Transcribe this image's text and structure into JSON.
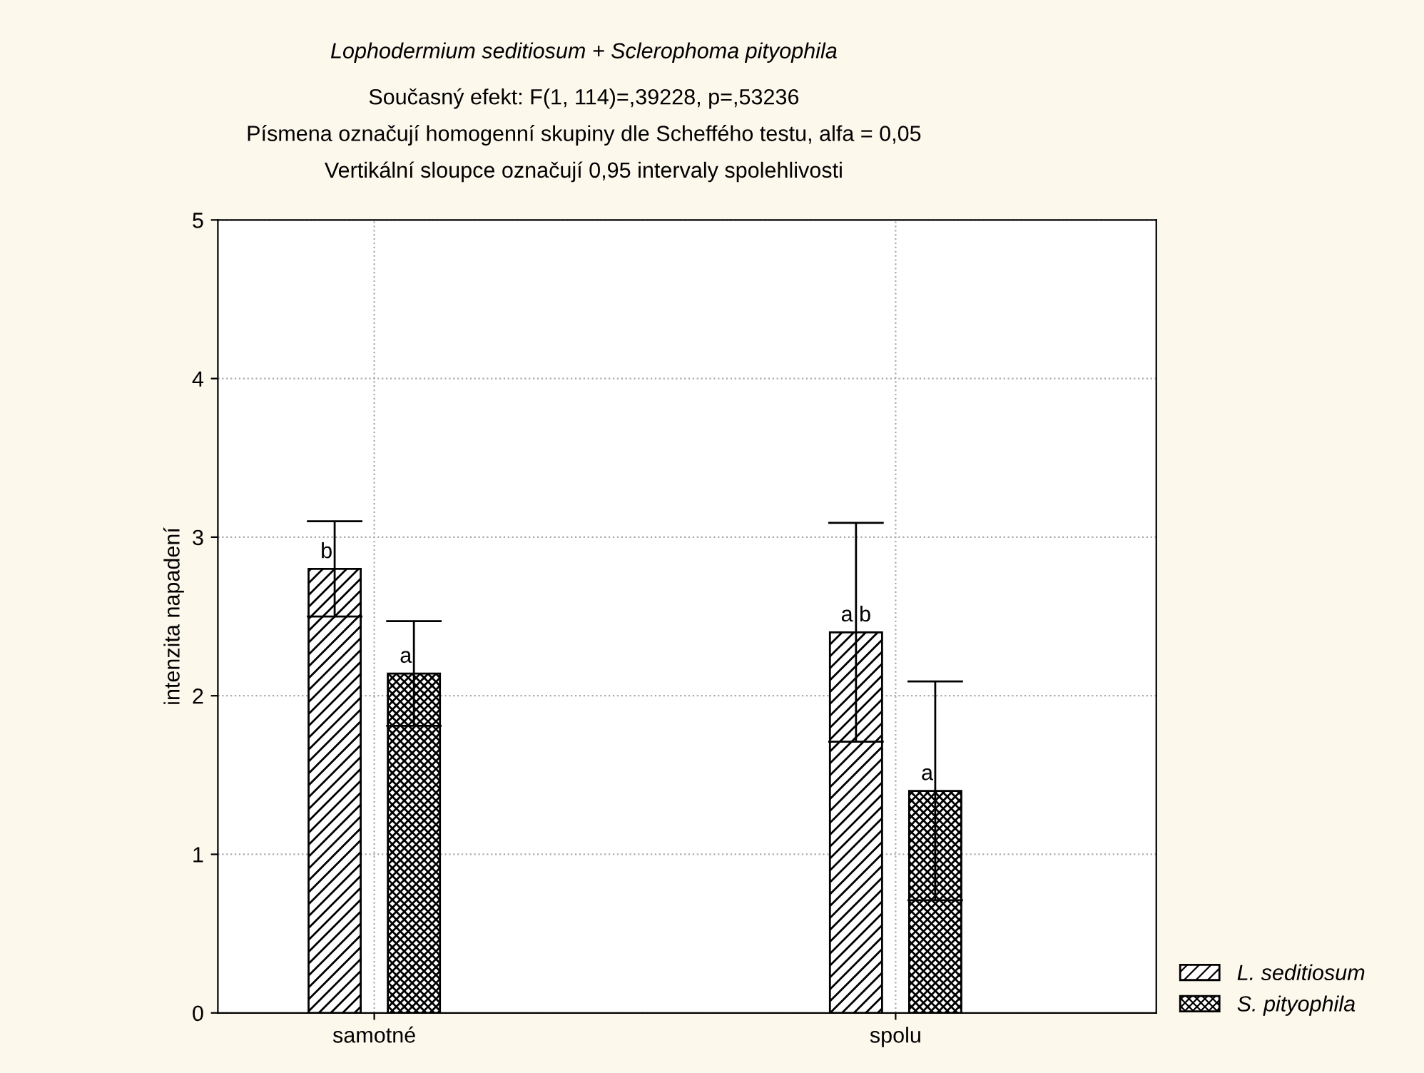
{
  "chart_data": {
    "type": "bar",
    "title": "Lophodermium seditiosum + Sclerophoma pityophila",
    "subtitle": "Současný efekt: F(1, 114)=,39228, p=,53236\nPísmena označují homogenní skupiny dle Scheffého testu, alfa = 0,05\nVertikální sloupce označují 0,95 intervaly spolehlivosti",
    "ylabel": "intenzita napadení",
    "categories": [
      "samotné",
      "spolu"
    ],
    "series": [
      {
        "name": "L. seditiosum",
        "color": "#000000",
        "values": [
          2.8,
          2.4
        ],
        "errors": [
          0.3,
          0.69
        ]
      },
      {
        "name": "S. pityophila",
        "color": "#000000",
        "values": [
          2.14,
          1.4
        ],
        "errors": [
          0.33,
          0.69
        ]
      }
    ],
    "ylim": [
      0,
      5
    ],
    "yticks": [
      0,
      1,
      2,
      3,
      4,
      5
    ],
    "grid": true,
    "legend": "bottom right",
    "annotations": [
      "b",
      "a",
      "a b",
      "a"
    ]
  }
}
